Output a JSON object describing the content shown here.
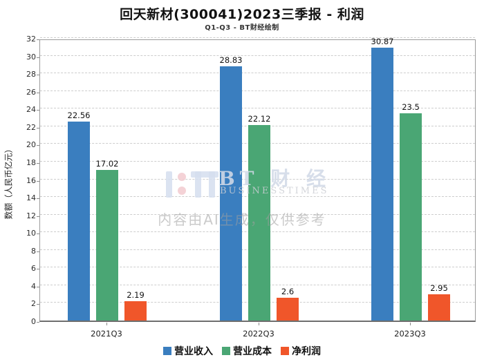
{
  "header": {
    "title": "回天新材(300041)2023三季报 - 利润",
    "subtitle": "Q1-Q3 - BT财经绘制"
  },
  "watermark": {
    "brand": "BT 财 经",
    "brand_sub": "BUSINESSTIMES",
    "disclaimer": "内容由AI生成，仅供参考"
  },
  "chart_data": {
    "type": "bar",
    "title": "回天新材(300041)2023三季报 - 利润",
    "subtitle": "Q1-Q3 - BT财经绘制",
    "xlabel": "",
    "ylabel": "数额（人民币亿元）",
    "categories": [
      "2021Q3",
      "2022Q3",
      "2023Q3"
    ],
    "series": [
      {
        "name": "营业收入",
        "color": "#3a7ebf",
        "values": [
          22.56,
          28.83,
          30.87
        ],
        "labels": [
          "22.56",
          "28.83",
          "30.87"
        ]
      },
      {
        "name": "营业成本",
        "color": "#4aa674",
        "values": [
          17.02,
          22.12,
          23.5
        ],
        "labels": [
          "17.02",
          "22.12",
          "23.5"
        ]
      },
      {
        "name": "净利润",
        "color": "#f0562a",
        "values": [
          2.19,
          2.6,
          2.95
        ],
        "labels": [
          "2.19",
          "2.6",
          "2.95"
        ]
      }
    ],
    "ylim": [
      0,
      32
    ],
    "ytick_step": 2,
    "grid": "horizontal-dashed",
    "legend_position": "bottom-center"
  },
  "colors": {
    "revenue": "#3a7ebf",
    "cost": "#4aa674",
    "net_profit": "#f0562a",
    "gridline": "#cccccc",
    "spine": "#9a9a9a"
  }
}
